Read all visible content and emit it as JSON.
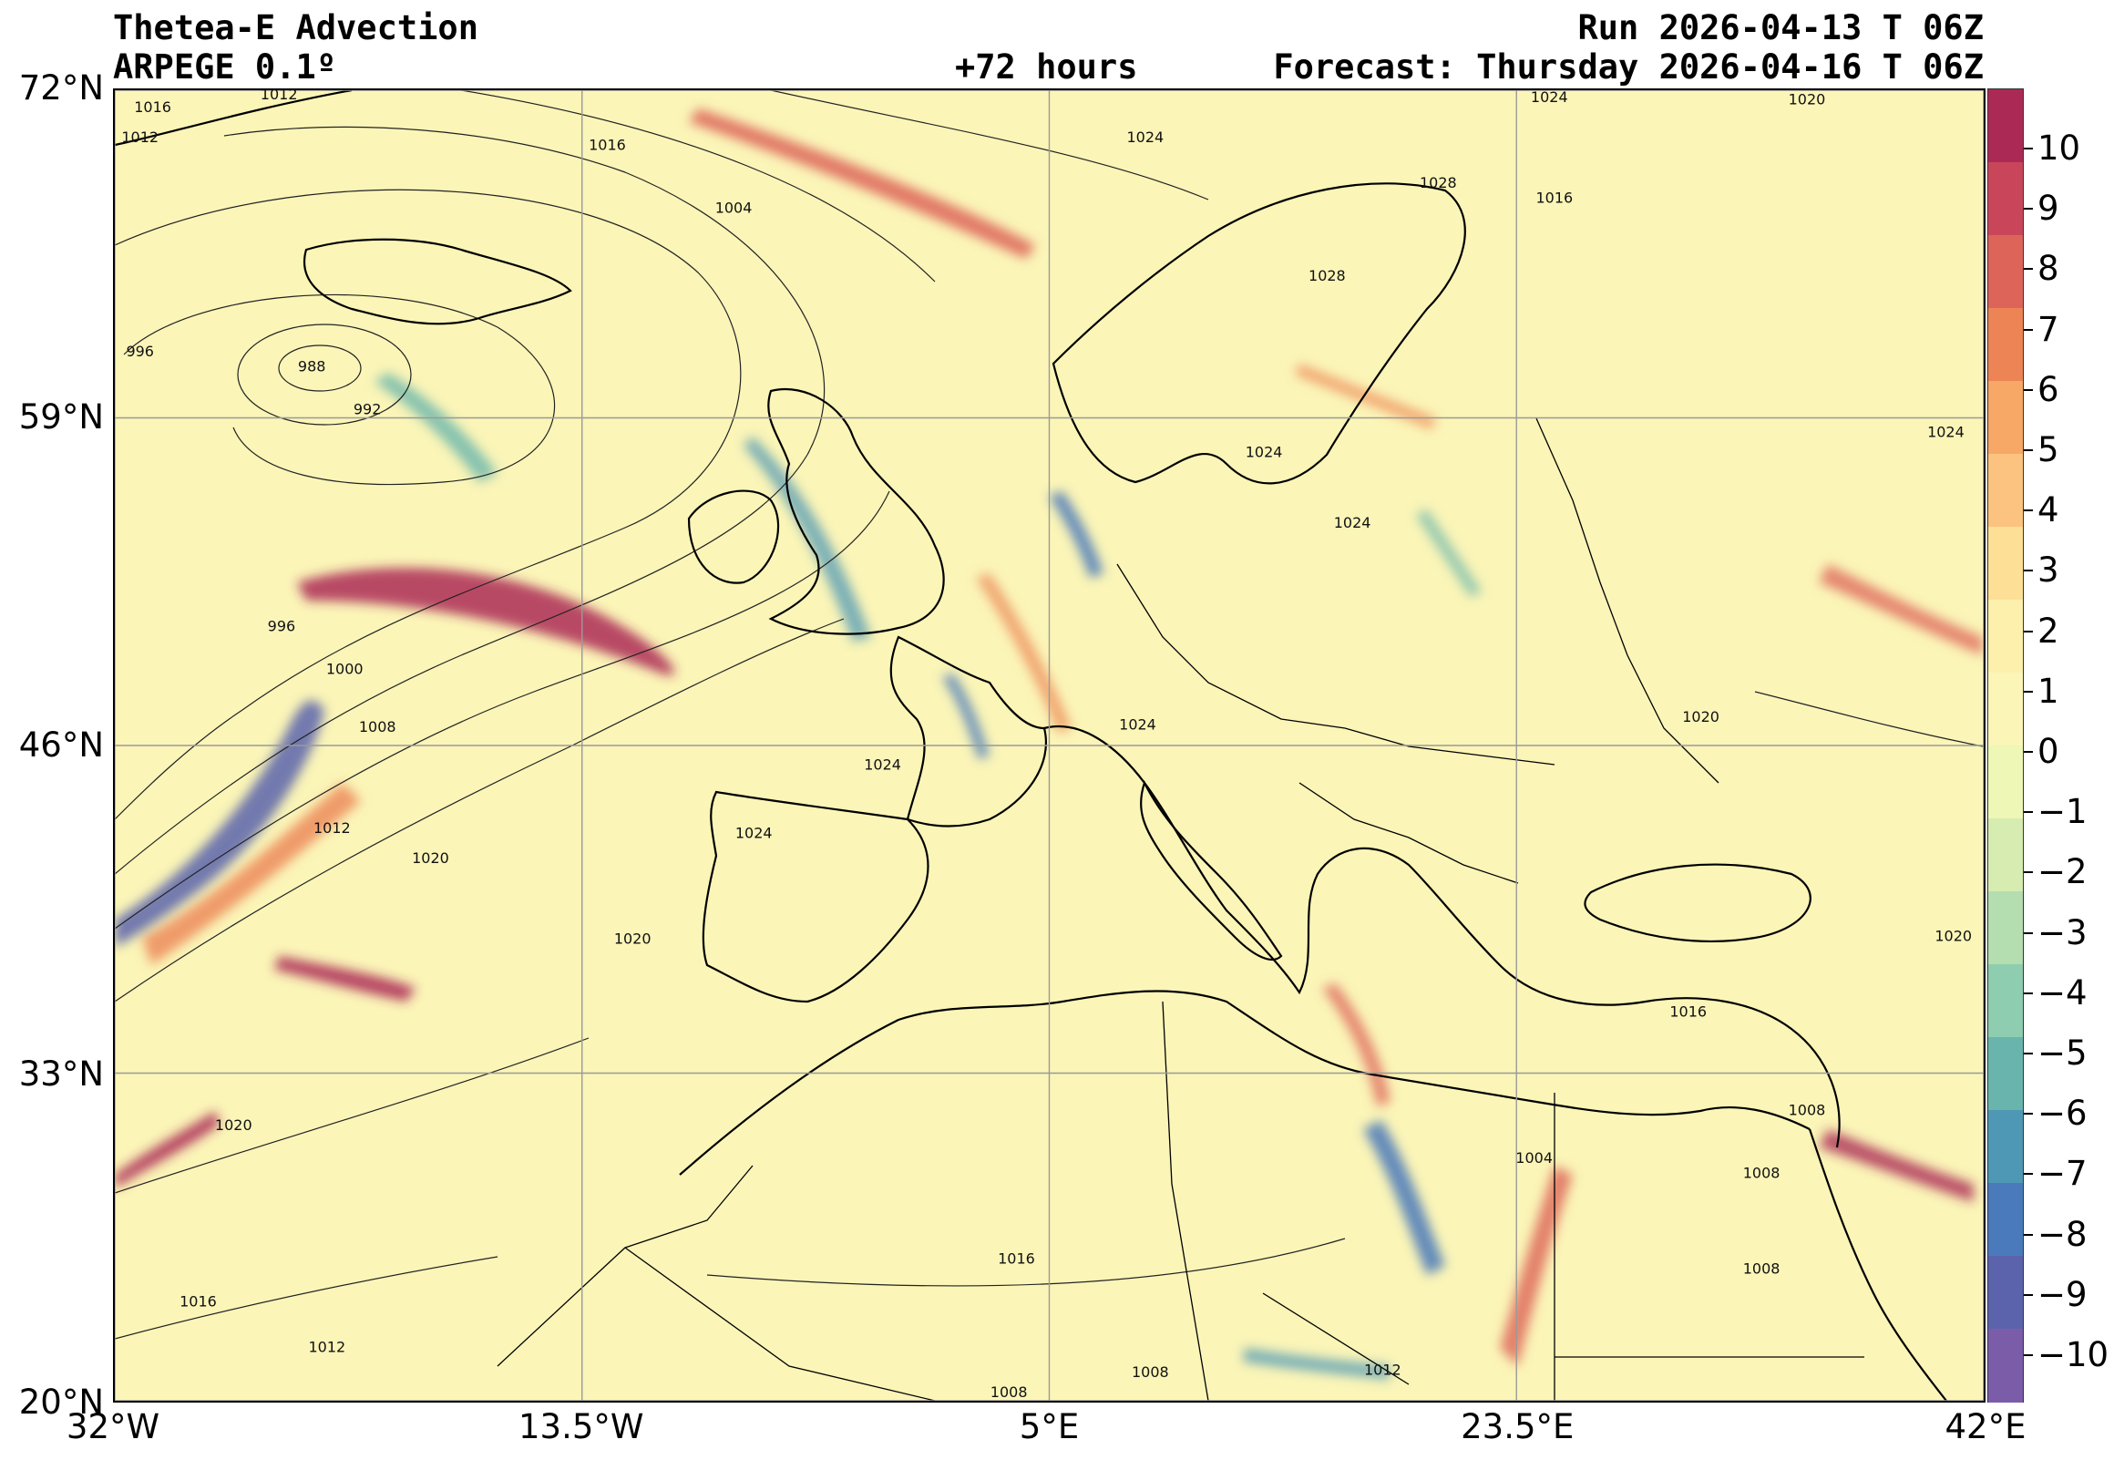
{
  "header": {
    "title": "Thetea-E Advection",
    "model": "ARPEGE 0.1º",
    "lead": "+72 hours",
    "run": "Run 2026-04-13 T 06Z",
    "forecast": "Forecast: Thursday 2026-04-16 T 06Z"
  },
  "map": {
    "lon_range": [
      -32,
      42
    ],
    "lat_range": [
      20,
      72
    ],
    "lat_ticks": [
      {
        "value": 72,
        "label": "72°N"
      },
      {
        "value": 59,
        "label": "59°N"
      },
      {
        "value": 46,
        "label": "46°N"
      },
      {
        "value": 33,
        "label": "33°N"
      },
      {
        "value": 20,
        "label": "20°N"
      }
    ],
    "lon_ticks": [
      {
        "value": -32,
        "label": "32°W"
      },
      {
        "value": -13.5,
        "label": "13.5°W"
      },
      {
        "value": 5,
        "label": "5°E"
      },
      {
        "value": 23.5,
        "label": "23.5°E"
      },
      {
        "value": 42,
        "label": "42°E"
      }
    ],
    "gridlines": true,
    "background_color": "#fbf5b8",
    "isobar_labels": [
      {
        "text": "1016",
        "lon": -30.5,
        "lat": 71.3
      },
      {
        "text": "1012",
        "lon": -25.5,
        "lat": 71.8
      },
      {
        "text": "1012",
        "lon": -31.0,
        "lat": 70.1
      },
      {
        "text": "1016",
        "lon": -12.5,
        "lat": 69.8
      },
      {
        "text": "1024",
        "lon": 8.8,
        "lat": 70.1
      },
      {
        "text": "1024",
        "lon": 24.8,
        "lat": 71.7
      },
      {
        "text": "1020",
        "lon": 35.0,
        "lat": 71.6
      },
      {
        "text": "1004",
        "lon": -7.5,
        "lat": 67.3
      },
      {
        "text": "1016",
        "lon": 25.0,
        "lat": 67.7
      },
      {
        "text": "1028",
        "lon": 20.4,
        "lat": 68.3
      },
      {
        "text": "1028",
        "lon": 16.0,
        "lat": 64.6
      },
      {
        "text": "996",
        "lon": -31.0,
        "lat": 61.6
      },
      {
        "text": "988",
        "lon": -24.2,
        "lat": 61.0
      },
      {
        "text": "992",
        "lon": -22.0,
        "lat": 59.3
      },
      {
        "text": "1024",
        "lon": 13.5,
        "lat": 57.6
      },
      {
        "text": "1024",
        "lon": 40.5,
        "lat": 58.4
      },
      {
        "text": "1024",
        "lon": 17.0,
        "lat": 54.8
      },
      {
        "text": "996",
        "lon": -25.4,
        "lat": 50.7
      },
      {
        "text": "1000",
        "lon": -22.9,
        "lat": 49.0
      },
      {
        "text": "1008",
        "lon": -21.6,
        "lat": 46.7
      },
      {
        "text": "1024",
        "lon": 8.5,
        "lat": 46.8
      },
      {
        "text": "1020",
        "lon": 30.8,
        "lat": 47.1
      },
      {
        "text": "1024",
        "lon": -1.6,
        "lat": 45.2
      },
      {
        "text": "1024",
        "lon": -6.7,
        "lat": 42.5
      },
      {
        "text": "1012",
        "lon": -23.4,
        "lat": 42.7
      },
      {
        "text": "1020",
        "lon": -19.5,
        "lat": 41.5
      },
      {
        "text": "1020",
        "lon": -11.5,
        "lat": 38.3
      },
      {
        "text": "1020",
        "lon": 40.8,
        "lat": 38.4
      },
      {
        "text": "1016",
        "lon": 30.3,
        "lat": 35.4
      },
      {
        "text": "1020",
        "lon": -27.3,
        "lat": 30.9
      },
      {
        "text": "1004",
        "lon": 24.2,
        "lat": 29.6
      },
      {
        "text": "1008",
        "lon": 33.2,
        "lat": 29.0
      },
      {
        "text": "1008",
        "lon": 35.0,
        "lat": 31.5
      },
      {
        "text": "1016",
        "lon": 3.7,
        "lat": 25.6
      },
      {
        "text": "1008",
        "lon": 33.2,
        "lat": 25.2
      },
      {
        "text": "1016",
        "lon": -28.7,
        "lat": 23.9
      },
      {
        "text": "1012",
        "lon": -23.6,
        "lat": 22.1
      },
      {
        "text": "1012",
        "lon": 18.2,
        "lat": 21.2
      },
      {
        "text": "1008",
        "lon": 9.0,
        "lat": 21.1
      },
      {
        "text": "1008",
        "lon": 3.4,
        "lat": 20.3
      }
    ]
  },
  "colorbar": {
    "ticks": [
      "10",
      "9",
      "8",
      "7",
      "6",
      "5",
      "4",
      "3",
      "2",
      "1",
      "0",
      "−1",
      "−2",
      "−3",
      "−4",
      "−5",
      "−6",
      "−7",
      "−8",
      "−9",
      "−10"
    ],
    "colors_top_to_bottom": [
      "#ab2a55",
      "#c9465a",
      "#dd6459",
      "#ec8455",
      "#f7a766",
      "#fbc37f",
      "#fde095",
      "#fdf0ad",
      "#fbf5b8",
      "#eef7b5",
      "#d6ecb0",
      "#b4ddb0",
      "#8ecdaf",
      "#69b5ad",
      "#4f98b5",
      "#4a7abb",
      "#5b63ac",
      "#7b5ca9"
    ]
  }
}
